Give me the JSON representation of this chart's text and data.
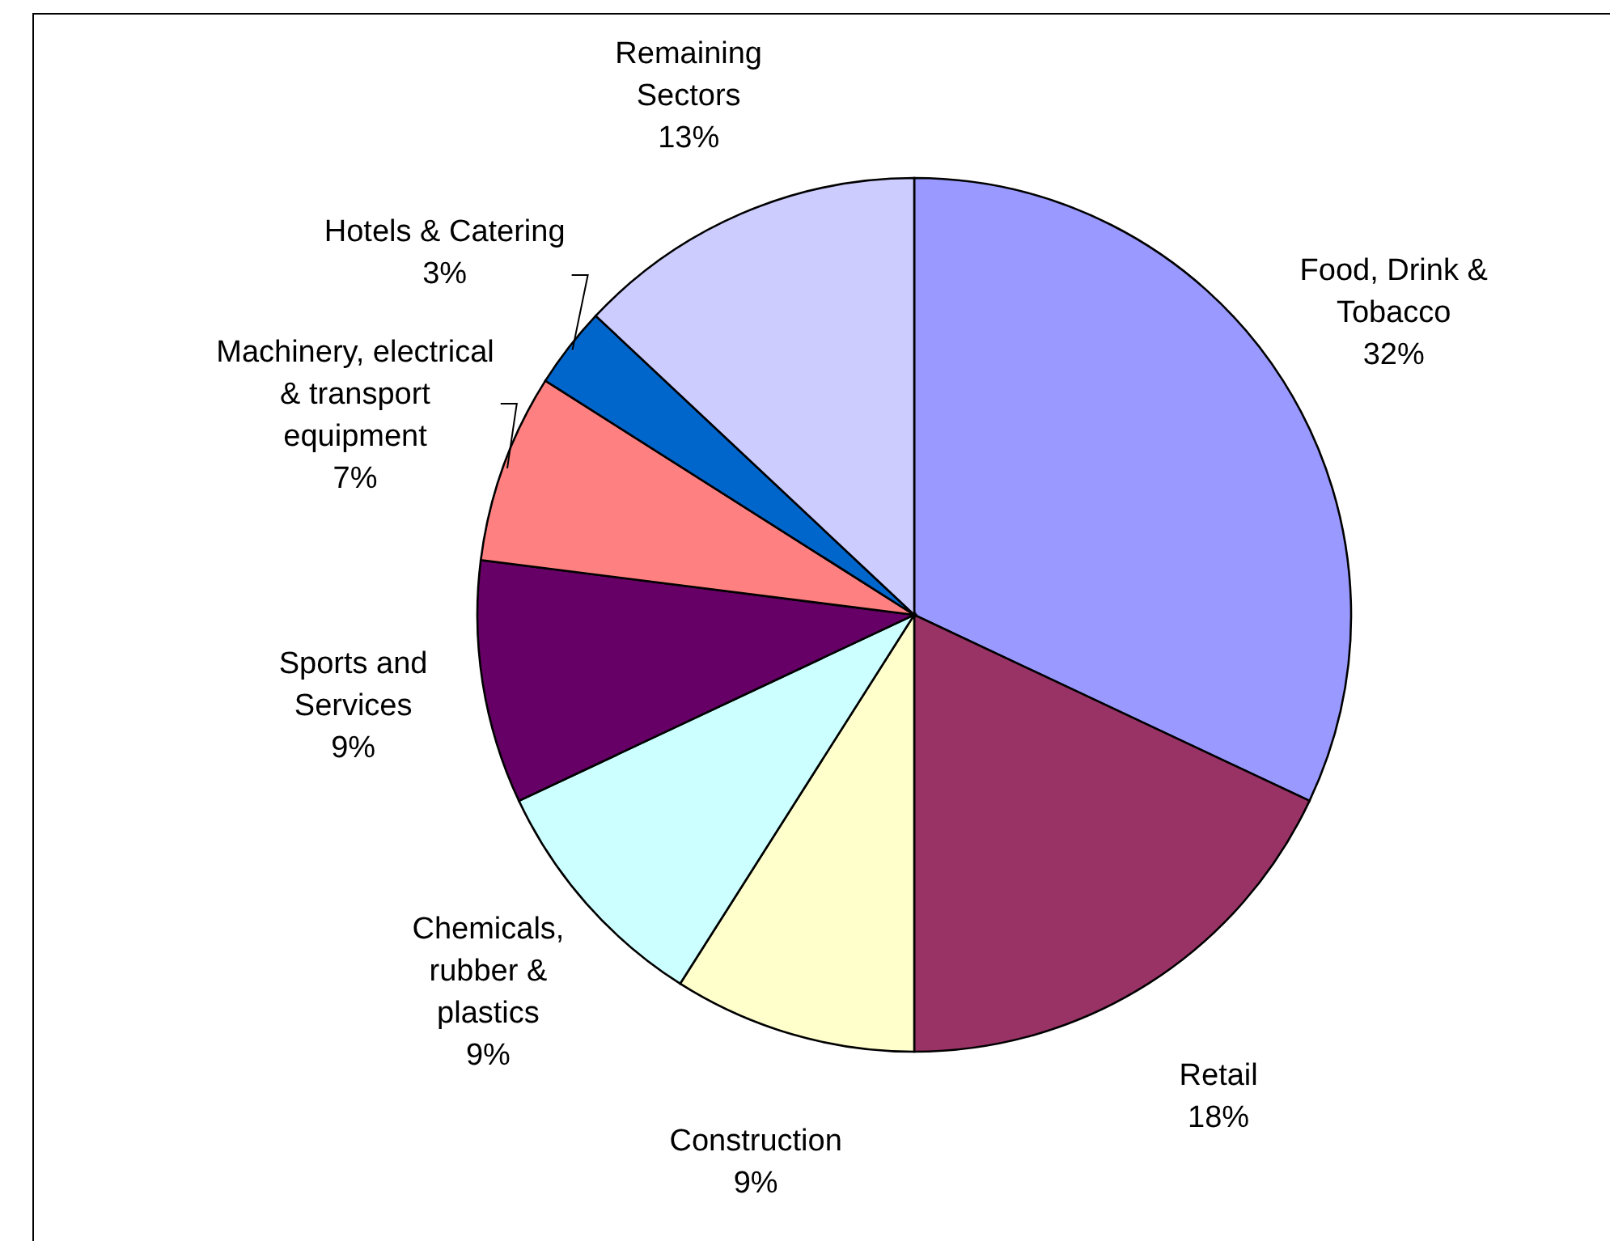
{
  "chart_data": {
    "type": "pie",
    "categories": [
      "Food, Drink & Tobacco",
      "Retail",
      "Construction",
      "Chemicals, rubber & plastics",
      "Sports and Services",
      "Machinery, electrical & transport equipment",
      "Hotels & Catering",
      "Remaining Sectors"
    ],
    "values": [
      32,
      18,
      9,
      9,
      9,
      7,
      3,
      13
    ],
    "colors": [
      "#9999ff",
      "#993366",
      "#ffffcc",
      "#ccffff",
      "#660066",
      "#ff8080",
      "#0066cc",
      "#ccccff"
    ],
    "value_labels": [
      "32%",
      "18%",
      "9%",
      "9%",
      "9%",
      "7%",
      "3%",
      "13%"
    ]
  }
}
